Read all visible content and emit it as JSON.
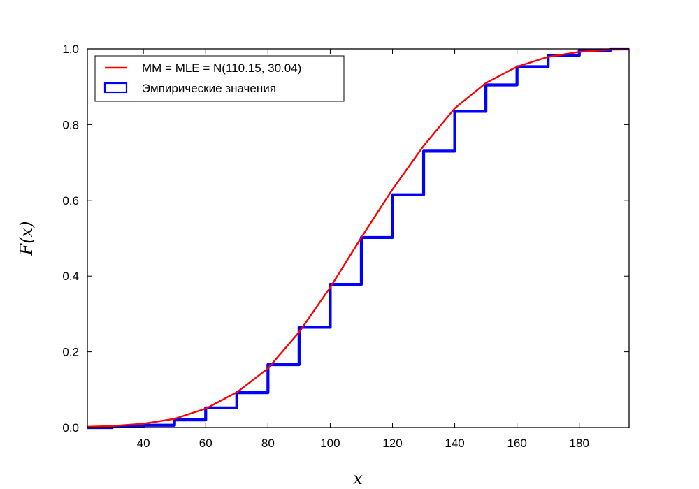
{
  "chart_data": {
    "type": "line",
    "xlabel": "x",
    "ylabel": "F(x)",
    "xlim": [
      22,
      196
    ],
    "ylim": [
      0.0,
      1.0
    ],
    "xticks": [
      40,
      60,
      80,
      100,
      120,
      140,
      160,
      180
    ],
    "yticks": [
      0.0,
      0.2,
      0.4,
      0.6,
      0.8,
      1.0
    ],
    "grid": false,
    "legend_position": "top-left",
    "series": [
      {
        "name": "MM = MLE = N(110.15, 30.04)",
        "kind": "line",
        "color": "#ff0000",
        "x": [
          22,
          30,
          40,
          50,
          60,
          70,
          80,
          90,
          100,
          110,
          120,
          130,
          140,
          150,
          160,
          170,
          180,
          190,
          196
        ],
        "y": [
          0.002,
          0.004,
          0.01,
          0.023,
          0.05,
          0.093,
          0.156,
          0.252,
          0.37,
          0.502,
          0.629,
          0.744,
          0.843,
          0.91,
          0.953,
          0.979,
          0.992,
          0.998,
          0.999
        ]
      },
      {
        "name": "Эмпирические значения",
        "kind": "step",
        "color": "#0000ff",
        "x": [
          22,
          30,
          40,
          50,
          60,
          70,
          80,
          90,
          100,
          110,
          120,
          130,
          140,
          150,
          160,
          170,
          180,
          190,
          196
        ],
        "y": [
          0.0,
          0.002,
          0.006,
          0.02,
          0.052,
          0.092,
          0.166,
          0.265,
          0.378,
          0.502,
          0.615,
          0.73,
          0.835,
          0.905,
          0.953,
          0.983,
          0.996,
          1.0,
          1.0
        ]
      }
    ]
  }
}
